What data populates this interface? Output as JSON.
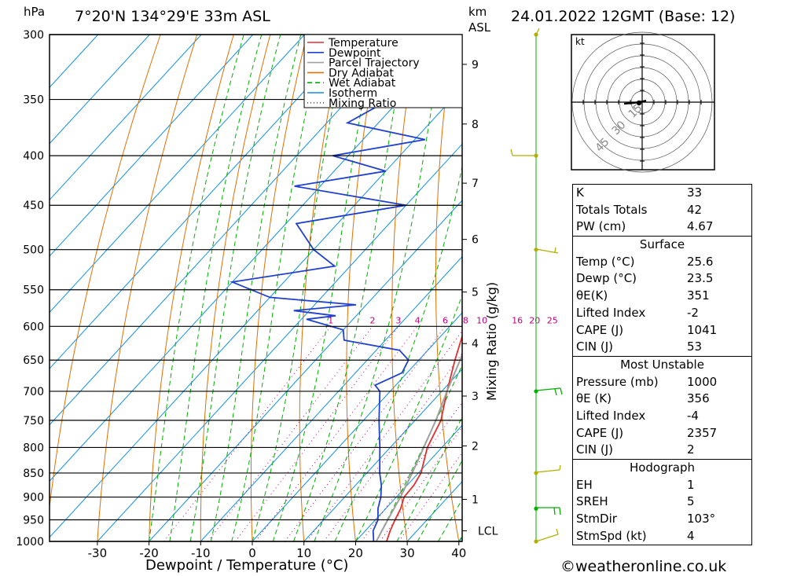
{
  "header": {
    "pressure_unit": "hPa",
    "location": "7°20'N  134°29'E  33m  ASL",
    "height_unit_1": "km",
    "height_unit_2": "ASL",
    "datetime": "24.01.2022  12GMT  (Base: 12)"
  },
  "chart_data": {
    "type": "line",
    "xlabel": "Dewpoint / Temperature (°C)",
    "ylabel": "hPa",
    "right_axis_label": "Mixing Ratio (g/kg)",
    "pressure_ticks": [
      300,
      350,
      400,
      450,
      500,
      550,
      600,
      650,
      700,
      750,
      800,
      850,
      900,
      950,
      1000
    ],
    "temp_ticks": [
      -30,
      -20,
      -10,
      0,
      10,
      20,
      30,
      40
    ],
    "xlim": [
      -40,
      40
    ],
    "ylim": [
      1000,
      300
    ],
    "km_ticks": [
      {
        "label": "1",
        "p": 905
      },
      {
        "label": "2",
        "p": 797
      },
      {
        "label": "3",
        "p": 708
      },
      {
        "label": "4",
        "p": 625
      },
      {
        "label": "5",
        "p": 553
      },
      {
        "label": "6",
        "p": 488
      },
      {
        "label": "7",
        "p": 427
      },
      {
        "label": "8",
        "p": 371
      },
      {
        "label": "9",
        "p": 322
      }
    ],
    "lcl": {
      "label": "LCL",
      "p": 975
    },
    "mixing_ratio_labels": [
      "1",
      "2",
      "3",
      "4",
      "6",
      "8",
      "10",
      "16",
      "20",
      "25"
    ],
    "mixing_ratio_values": [
      1,
      2,
      3,
      4,
      6,
      8,
      10,
      16,
      20,
      25
    ],
    "legend": [
      "Temperature",
      "Dewpoint",
      "Parcel Trajectory",
      "Dry Adiabat",
      "Wet Adiabat",
      "Isotherm",
      "Mixing Ratio"
    ],
    "colors": {
      "temperature": "#e03030",
      "dewpoint": "#2040d0",
      "parcel": "#a0a0a0",
      "dry_adiabat": "#e07000",
      "wet_adiabat": "#00b000",
      "isotherm": "#1090e0",
      "mixing_ratio": "#c0007a",
      "wind": "#b0b000",
      "wind_green": "#00b000"
    },
    "series": [
      {
        "name": "Temperature",
        "points": [
          [
            1000,
            26.0
          ],
          [
            975,
            24.8
          ],
          [
            950,
            23.8
          ],
          [
            925,
            22.9
          ],
          [
            900,
            21.5
          ],
          [
            875,
            21.3
          ],
          [
            850,
            20.5
          ],
          [
            800,
            17.2
          ],
          [
            750,
            15.0
          ],
          [
            700,
            11.0
          ],
          [
            650,
            7.0
          ],
          [
            600,
            3.0
          ],
          [
            550,
            -2.5
          ],
          [
            500,
            -7.5
          ],
          [
            450,
            -14.0
          ],
          [
            400,
            -21.0
          ],
          [
            375,
            -25.0
          ],
          [
            350,
            -29.5
          ]
        ]
      },
      {
        "name": "Dewpoint",
        "points": [
          [
            1000,
            23.5
          ],
          [
            975,
            21.5
          ],
          [
            950,
            20.5
          ],
          [
            925,
            18.5
          ],
          [
            900,
            17.0
          ],
          [
            875,
            15.0
          ],
          [
            850,
            12.5
          ],
          [
            800,
            8.0
          ],
          [
            750,
            3.0
          ],
          [
            700,
            -2.0
          ],
          [
            690,
            -4.0
          ],
          [
            670,
            -1.0
          ],
          [
            650,
            -2.0
          ],
          [
            635,
            -5.5
          ],
          [
            620,
            -18.0
          ],
          [
            605,
            -20.0
          ],
          [
            590,
            -29.0
          ],
          [
            585,
            -24.0
          ],
          [
            578,
            -33.0
          ],
          [
            570,
            -22.0
          ],
          [
            560,
            -40.0
          ],
          [
            540,
            -50.0
          ],
          [
            520,
            -33.0
          ],
          [
            500,
            -40.0
          ],
          [
            470,
            -48.0
          ],
          [
            450,
            -30.0
          ],
          [
            430,
            -55.0
          ],
          [
            415,
            -40.0
          ],
          [
            400,
            -53.0
          ],
          [
            385,
            -38.0
          ],
          [
            370,
            -56.0
          ],
          [
            350,
            -52.0
          ],
          [
            335,
            -54.0
          ],
          [
            320,
            -59.0
          ],
          [
            310,
            -56.0
          ],
          [
            300,
            -56.0
          ]
        ]
      },
      {
        "name": "Parcel Trajectory",
        "points": [
          [
            1000,
            24.0
          ],
          [
            975,
            23.2
          ],
          [
            950,
            22.4
          ],
          [
            925,
            21.6
          ],
          [
            900,
            20.8
          ],
          [
            850,
            18.8
          ],
          [
            800,
            16.5
          ],
          [
            750,
            14.0
          ],
          [
            700,
            11.0
          ],
          [
            650,
            8.0
          ],
          [
            600,
            4.5
          ],
          [
            550,
            0.5
          ],
          [
            500,
            -4.5
          ],
          [
            450,
            -10.0
          ],
          [
            400,
            -16.5
          ],
          [
            375,
            -20.0
          ],
          [
            360,
            -23.0
          ]
        ]
      }
    ],
    "wind_barbs_p": [
      300,
      400,
      500,
      700,
      850,
      925,
      1000
    ]
  },
  "hodograph": {
    "unit": "kt",
    "ring_labels": [
      "15",
      "30",
      "45"
    ],
    "ring_values": [
      15,
      30,
      45
    ]
  },
  "indices": {
    "k_label": "K",
    "k": "33",
    "tt_label": "Totals Totals",
    "tt": "42",
    "pw_label": "PW (cm)",
    "pw": "4.67",
    "surface_title": "Surface",
    "s_temp_label": "Temp (°C)",
    "s_temp": "25.6",
    "s_dewp_label": "Dewp (°C)",
    "s_dewp": "23.5",
    "s_theta_label": "θE(K)",
    "s_theta": "351",
    "s_li_label": "Lifted Index",
    "s_li": "-2",
    "s_cape_label": "CAPE (J)",
    "s_cape": "1041",
    "s_cin_label": "CIN (J)",
    "s_cin": "53",
    "mu_title": "Most Unstable",
    "mu_pres_label": "Pressure (mb)",
    "mu_pres": "1000",
    "mu_theta_label": "θE (K)",
    "mu_theta": "356",
    "mu_li_label": "Lifted Index",
    "mu_li": "-4",
    "mu_cape_label": "CAPE (J)",
    "mu_cape": "2357",
    "mu_cin_label": "CIN (J)",
    "mu_cin": "2",
    "hodo_title": "Hodograph",
    "eh_label": "EH",
    "eh": "1",
    "sreh_label": "SREH",
    "sreh": "5",
    "stmdir_label": "StmDir",
    "stmdir": "103°",
    "stmspd_label": "StmSpd (kt)",
    "stmspd": "4"
  },
  "footer": {
    "copyright_symbol": "©",
    "site": "weatheronline.co.uk"
  }
}
